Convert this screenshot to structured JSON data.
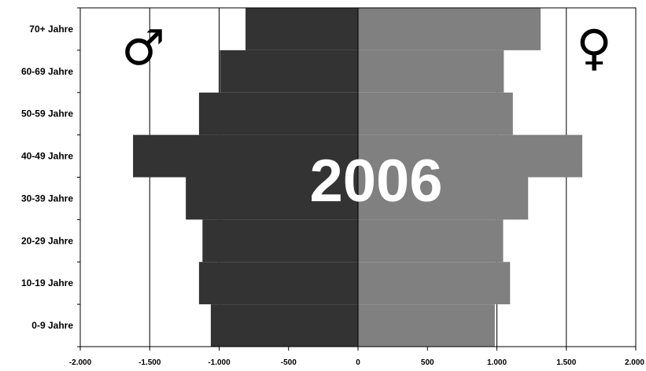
{
  "chart_data": {
    "type": "bar",
    "orientation": "horizontal",
    "layout": "population-pyramid",
    "categories": [
      "0-9 Jahre",
      "10-19 Jahre",
      "20-29 Jahre",
      "30-39 Jahre",
      "40-49 Jahre",
      "50-59 Jahre",
      "60-69 Jahre",
      "70+ Jahre"
    ],
    "series": [
      {
        "values": [
          -1060,
          -1145,
          -1120,
          -1240,
          -1620,
          -1145,
          -995,
          -810
        ],
        "color": "#333333"
      },
      {
        "values": [
          985,
          1095,
          1045,
          1225,
          1615,
          1115,
          1050,
          1315
        ],
        "color": "#808080"
      }
    ],
    "xlim": [
      -2000,
      2000
    ],
    "x_ticks": [
      -2000,
      -1500,
      -1000,
      -500,
      0,
      500,
      1000,
      1500,
      2000
    ],
    "x_tick_labels": [
      "-2.000",
      "-1.500",
      "-1.000",
      "-500",
      "0",
      "500",
      "1.000",
      "1.500",
      "2.000"
    ],
    "gridlines": [
      -1500,
      -1000,
      1000,
      1500
    ],
    "year_label": "2006",
    "male_symbol": "♂",
    "female_symbol": "♀",
    "grid": true,
    "legend": "none"
  }
}
